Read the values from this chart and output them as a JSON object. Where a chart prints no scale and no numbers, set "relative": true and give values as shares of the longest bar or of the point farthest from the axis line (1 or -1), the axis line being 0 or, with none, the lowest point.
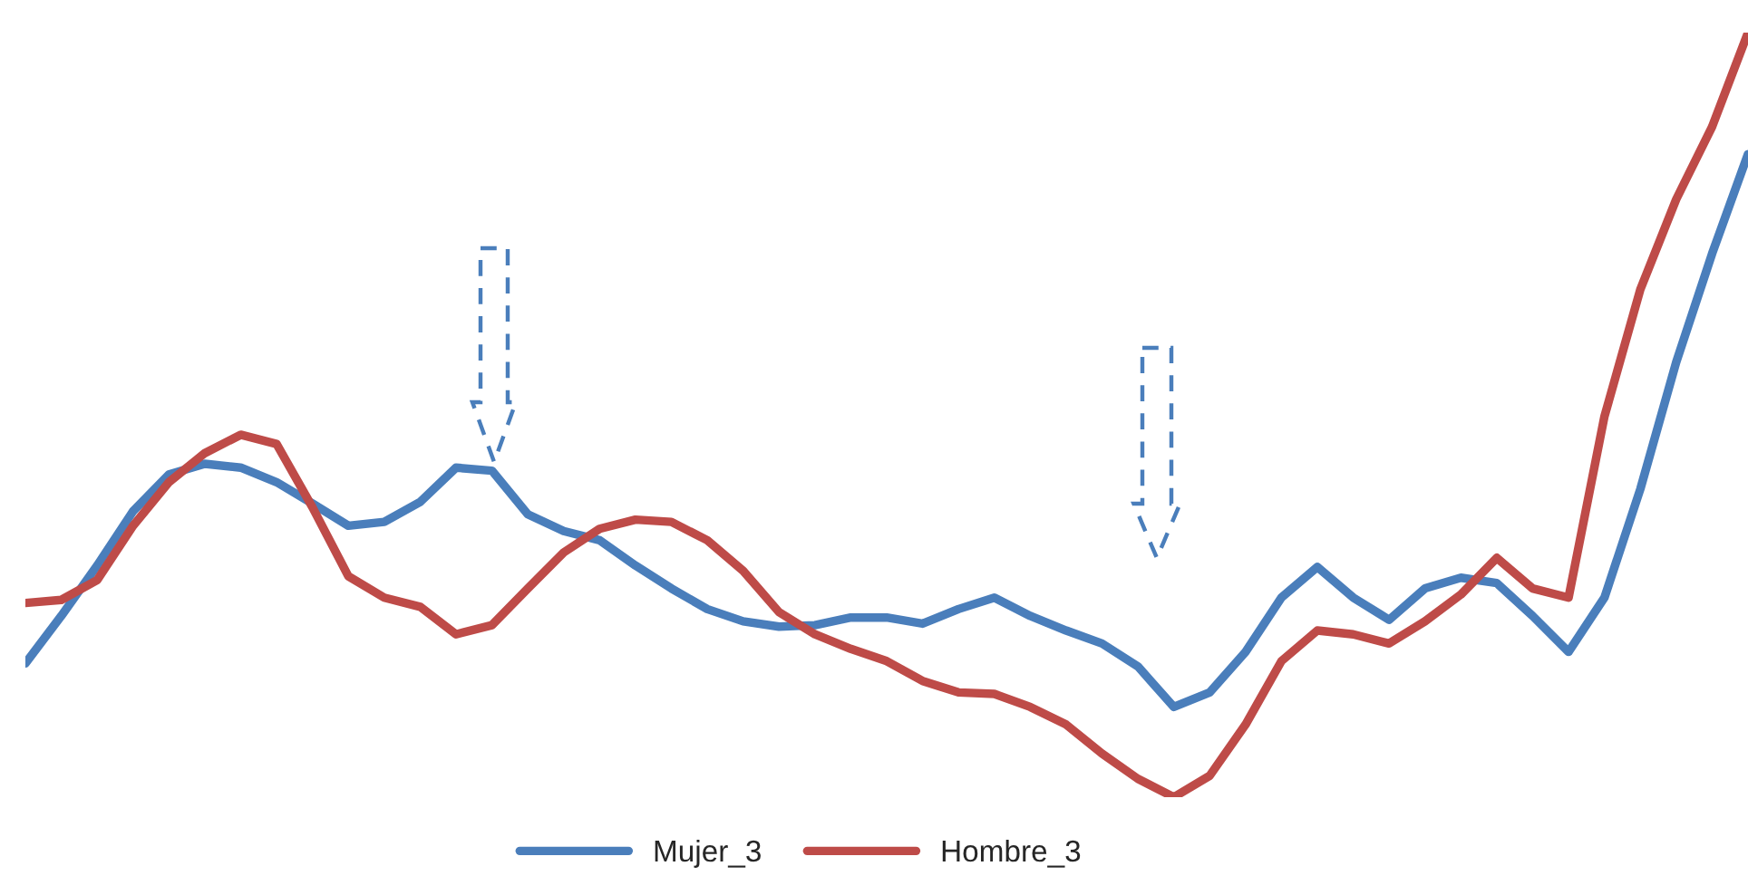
{
  "chart_data": {
    "type": "line",
    "relative": true,
    "legend": "bottom",
    "grid": false,
    "categories": [
      null,
      null,
      null,
      null,
      null,
      null,
      null,
      null,
      null,
      null,
      null,
      null,
      null,
      null,
      null,
      null,
      null,
      null,
      null,
      null,
      null,
      null,
      null,
      null,
      null,
      null,
      null,
      null,
      null,
      null,
      null,
      null,
      null,
      null,
      null,
      null,
      null,
      null,
      null,
      null,
      null,
      null,
      null,
      null,
      null,
      null,
      null,
      null,
      null
    ],
    "series": [
      {
        "name": "Mujer_3",
        "color": "#4a7ebb",
        "values": [
          0.175,
          0.237,
          0.303,
          0.374,
          0.422,
          0.436,
          0.431,
          0.412,
          0.384,
          0.355,
          0.36,
          0.386,
          0.431,
          0.427,
          0.37,
          0.348,
          0.336,
          0.303,
          0.273,
          0.246,
          0.23,
          0.223,
          0.225,
          0.235,
          0.235,
          0.227,
          0.246,
          0.261,
          0.237,
          0.218,
          0.201,
          0.171,
          0.118,
          0.137,
          0.19,
          0.261,
          0.301,
          0.261,
          0.232,
          0.273,
          0.287,
          0.28,
          0.237,
          0.19,
          0.261,
          0.403,
          0.569,
          0.711,
          0.841
        ]
      },
      {
        "name": "Hombre_3",
        "color": "#be4b48",
        "values": [
          0.254,
          0.258,
          0.284,
          0.355,
          0.412,
          0.45,
          0.474,
          0.462,
          0.379,
          0.289,
          0.261,
          0.249,
          0.213,
          0.225,
          0.273,
          0.32,
          0.351,
          0.363,
          0.36,
          0.336,
          0.296,
          0.242,
          0.213,
          0.194,
          0.178,
          0.152,
          0.137,
          0.135,
          0.118,
          0.095,
          0.057,
          0.024,
          0,
          0.028,
          0.095,
          0.178,
          0.218,
          0.213,
          0.201,
          0.23,
          0.265,
          0.313,
          0.273,
          0.261,
          0.498,
          0.664,
          0.782,
          0.877,
          1
        ]
      }
    ]
  }
}
